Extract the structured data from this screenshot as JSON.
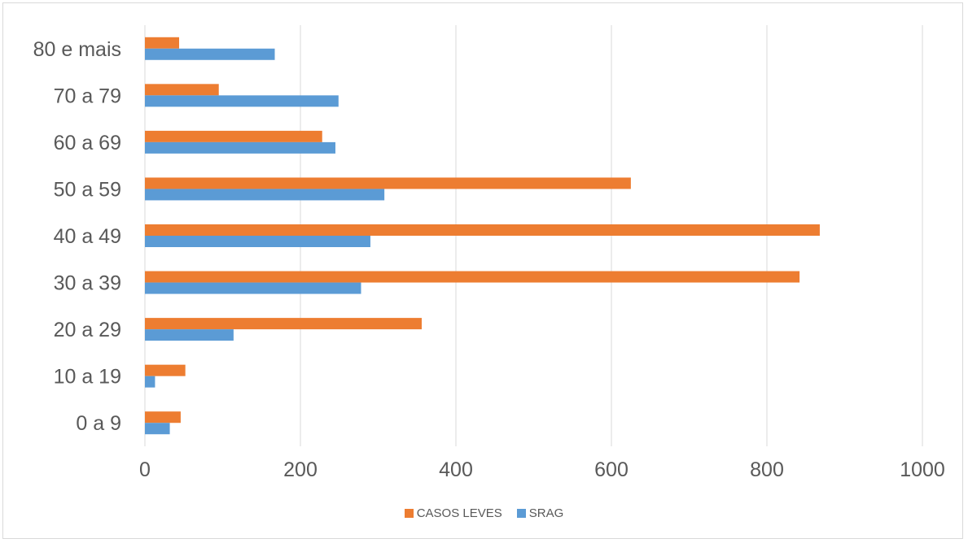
{
  "chart_data": {
    "type": "bar",
    "orientation": "horizontal",
    "categories": [
      "0 a 9",
      "10 a 19",
      "20 a 29",
      "30 a 39",
      "40 a 49",
      "50 a 59",
      "60 a 69",
      "70 a 79",
      "80 e mais"
    ],
    "series": [
      {
        "name": "CASOS LEVES",
        "color": "#ed7d31",
        "values": [
          46,
          52,
          356,
          842,
          868,
          625,
          228,
          95,
          44
        ]
      },
      {
        "name": "SRAG",
        "color": "#5b9bd5",
        "values": [
          32,
          13,
          114,
          278,
          290,
          308,
          245,
          249,
          167
        ]
      }
    ],
    "xlim": [
      0,
      1000
    ],
    "x_ticks": [
      "0",
      "200",
      "400",
      "600",
      "800",
      "1000"
    ],
    "grid": true,
    "legend_position": "bottom",
    "title": "",
    "xlabel": "",
    "ylabel": ""
  }
}
